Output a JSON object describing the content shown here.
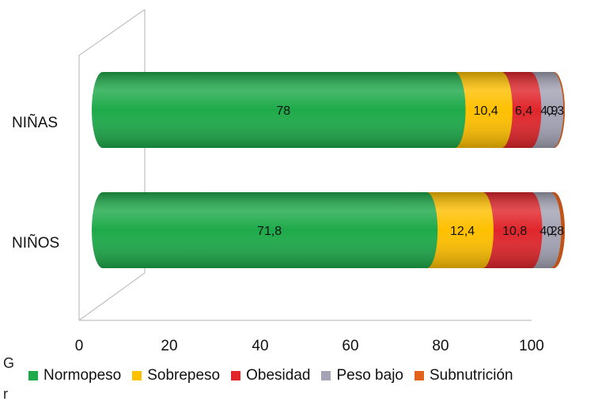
{
  "chart_data": {
    "type": "bar",
    "orientation": "horizontal",
    "stacked": true,
    "style": "3d-cylinder",
    "title": "",
    "xlabel": "",
    "ylabel": "",
    "categories": [
      "NIÑAS",
      "NIÑOS"
    ],
    "series": [
      {
        "name": "Normopeso",
        "values": [
          78,
          71.8
        ],
        "labels": [
          "78",
          "71,8"
        ],
        "color": "#1eaa4a"
      },
      {
        "name": "Sobrepeso",
        "values": [
          10.4,
          12.4
        ],
        "labels": [
          "10,4",
          "12,4"
        ],
        "color": "#ffc000"
      },
      {
        "name": "Obesidad",
        "values": [
          6.4,
          10.8
        ],
        "labels": [
          "6,4",
          "10,8"
        ],
        "color": "#e0262b"
      },
      {
        "name": "Peso bajo",
        "values": [
          4.9,
          4.2
        ],
        "labels": [
          "4,9",
          "4,2"
        ],
        "color": "#a3a3b5"
      },
      {
        "name": "Subnutrición",
        "values": [
          0.3,
          0.8
        ],
        "labels": [
          "0,3",
          "0,8"
        ],
        "color": "#e2621c"
      }
    ],
    "xlim": [
      0,
      100
    ],
    "xticks": [
      "0",
      "20",
      "40",
      "60",
      "80",
      "100"
    ],
    "grid": false,
    "legend_position": "bottom"
  },
  "stray_text": [
    "G",
    "r"
  ]
}
